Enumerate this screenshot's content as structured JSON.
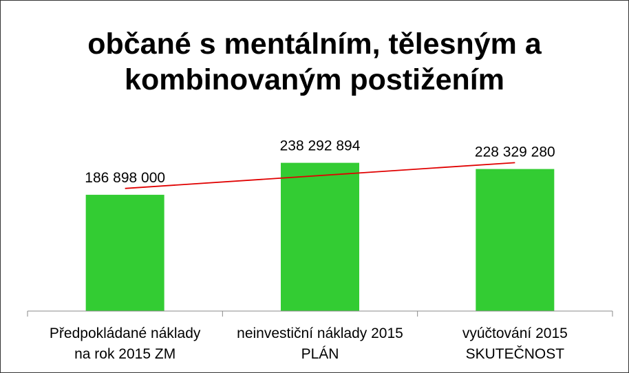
{
  "chart_data": {
    "type": "bar",
    "title": "občané s mentálním, tělesným a kombinovaným postižením",
    "categories": [
      "Předpokládané náklady\nna rok 2015 ZM",
      "neinvestiční náklady 2015\nPLÁN",
      "vyúčtování 2015\nSKUTEČNOST"
    ],
    "values": [
      186898000,
      238292894,
      228329280
    ],
    "value_labels": [
      "186 898 000",
      "238 292 894",
      "228 329 280"
    ],
    "color": "#33cc33",
    "trendline": true,
    "trendline_color": "#e00000",
    "ylim": [
      0,
      250000000
    ]
  }
}
